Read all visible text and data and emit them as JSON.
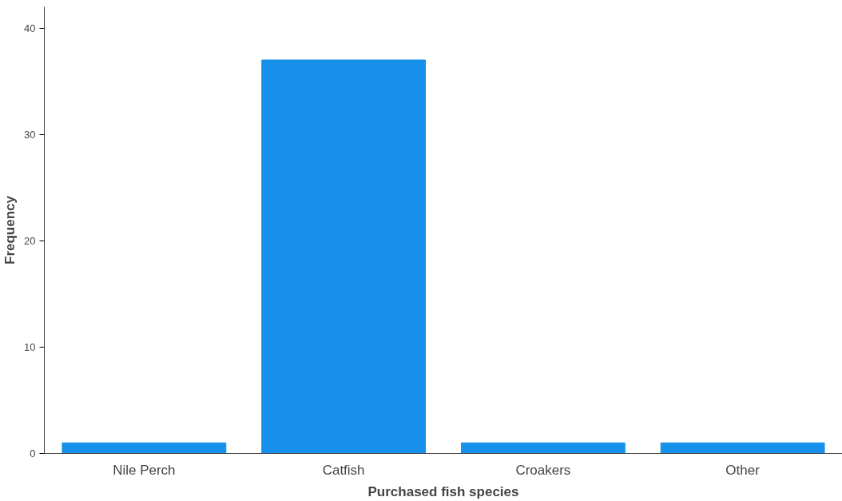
{
  "chart_data": {
    "type": "bar",
    "xlabel": "Purchased fish species",
    "ylabel": "Frequency",
    "categories": [
      "Nile Perch",
      "Catfish",
      "Croakers",
      "Other"
    ],
    "values": [
      1,
      37,
      1,
      1
    ],
    "color": "#1690e8",
    "ylim": [
      0,
      42
    ],
    "yticks": [
      0,
      10,
      20,
      30,
      40
    ],
    "grid": false
  }
}
